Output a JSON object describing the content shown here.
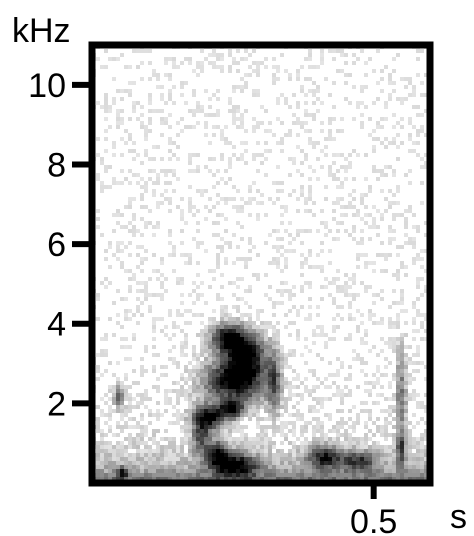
{
  "chart_data": {
    "type": "heatmap",
    "title": "",
    "ylabel": "kHz",
    "xlabel": "s",
    "ylim": [
      0,
      11
    ],
    "xlim": [
      0,
      0.6
    ],
    "y_ticks": [
      {
        "value": 10,
        "label": "10"
      },
      {
        "value": 8,
        "label": "8"
      },
      {
        "value": 6,
        "label": "6"
      },
      {
        "value": 4,
        "label": "4"
      },
      {
        "value": 2,
        "label": "2"
      }
    ],
    "x_ticks": [
      {
        "value": 0.5,
        "label": "0.5"
      }
    ],
    "grid": false,
    "colors": {
      "background": "#ffffff",
      "ink": "#000000",
      "noise_floor": "#a8a8a8"
    },
    "blobs": [
      {
        "t": 0.25,
        "f": 2.6,
        "dt": 0.055,
        "df": 0.55,
        "level": 0.95
      },
      {
        "t": 0.235,
        "f": 3.7,
        "dt": 0.03,
        "df": 0.35,
        "level": 0.85
      },
      {
        "t": 0.27,
        "f": 3.3,
        "dt": 0.035,
        "df": 0.55,
        "level": 0.9
      },
      {
        "t": 0.205,
        "f": 1.7,
        "dt": 0.03,
        "df": 0.3,
        "level": 0.85
      },
      {
        "t": 0.245,
        "f": 1.9,
        "dt": 0.02,
        "df": 0.2,
        "level": 0.8
      },
      {
        "t": 0.19,
        "f": 1.2,
        "dt": 0.015,
        "df": 0.45,
        "level": 0.6
      },
      {
        "t": 0.22,
        "f": 0.8,
        "dt": 0.018,
        "df": 0.3,
        "level": 0.75
      },
      {
        "t": 0.25,
        "f": 0.5,
        "dt": 0.04,
        "df": 0.3,
        "level": 0.85
      },
      {
        "t": 0.32,
        "f": 2.6,
        "dt": 0.012,
        "df": 0.8,
        "level": 0.5
      },
      {
        "t": 0.41,
        "f": 0.7,
        "dt": 0.03,
        "df": 0.3,
        "level": 0.7
      },
      {
        "t": 0.47,
        "f": 0.6,
        "dt": 0.03,
        "df": 0.25,
        "level": 0.6
      },
      {
        "t": 0.545,
        "f": 2.3,
        "dt": 0.01,
        "df": 1.2,
        "level": 0.45
      },
      {
        "t": 0.545,
        "f": 0.9,
        "dt": 0.008,
        "df": 0.4,
        "level": 0.55
      },
      {
        "t": 0.045,
        "f": 2.2,
        "dt": 0.01,
        "df": 0.3,
        "level": 0.5
      },
      {
        "t": 0.05,
        "f": 0.3,
        "dt": 0.01,
        "df": 0.15,
        "level": 0.6
      }
    ]
  }
}
